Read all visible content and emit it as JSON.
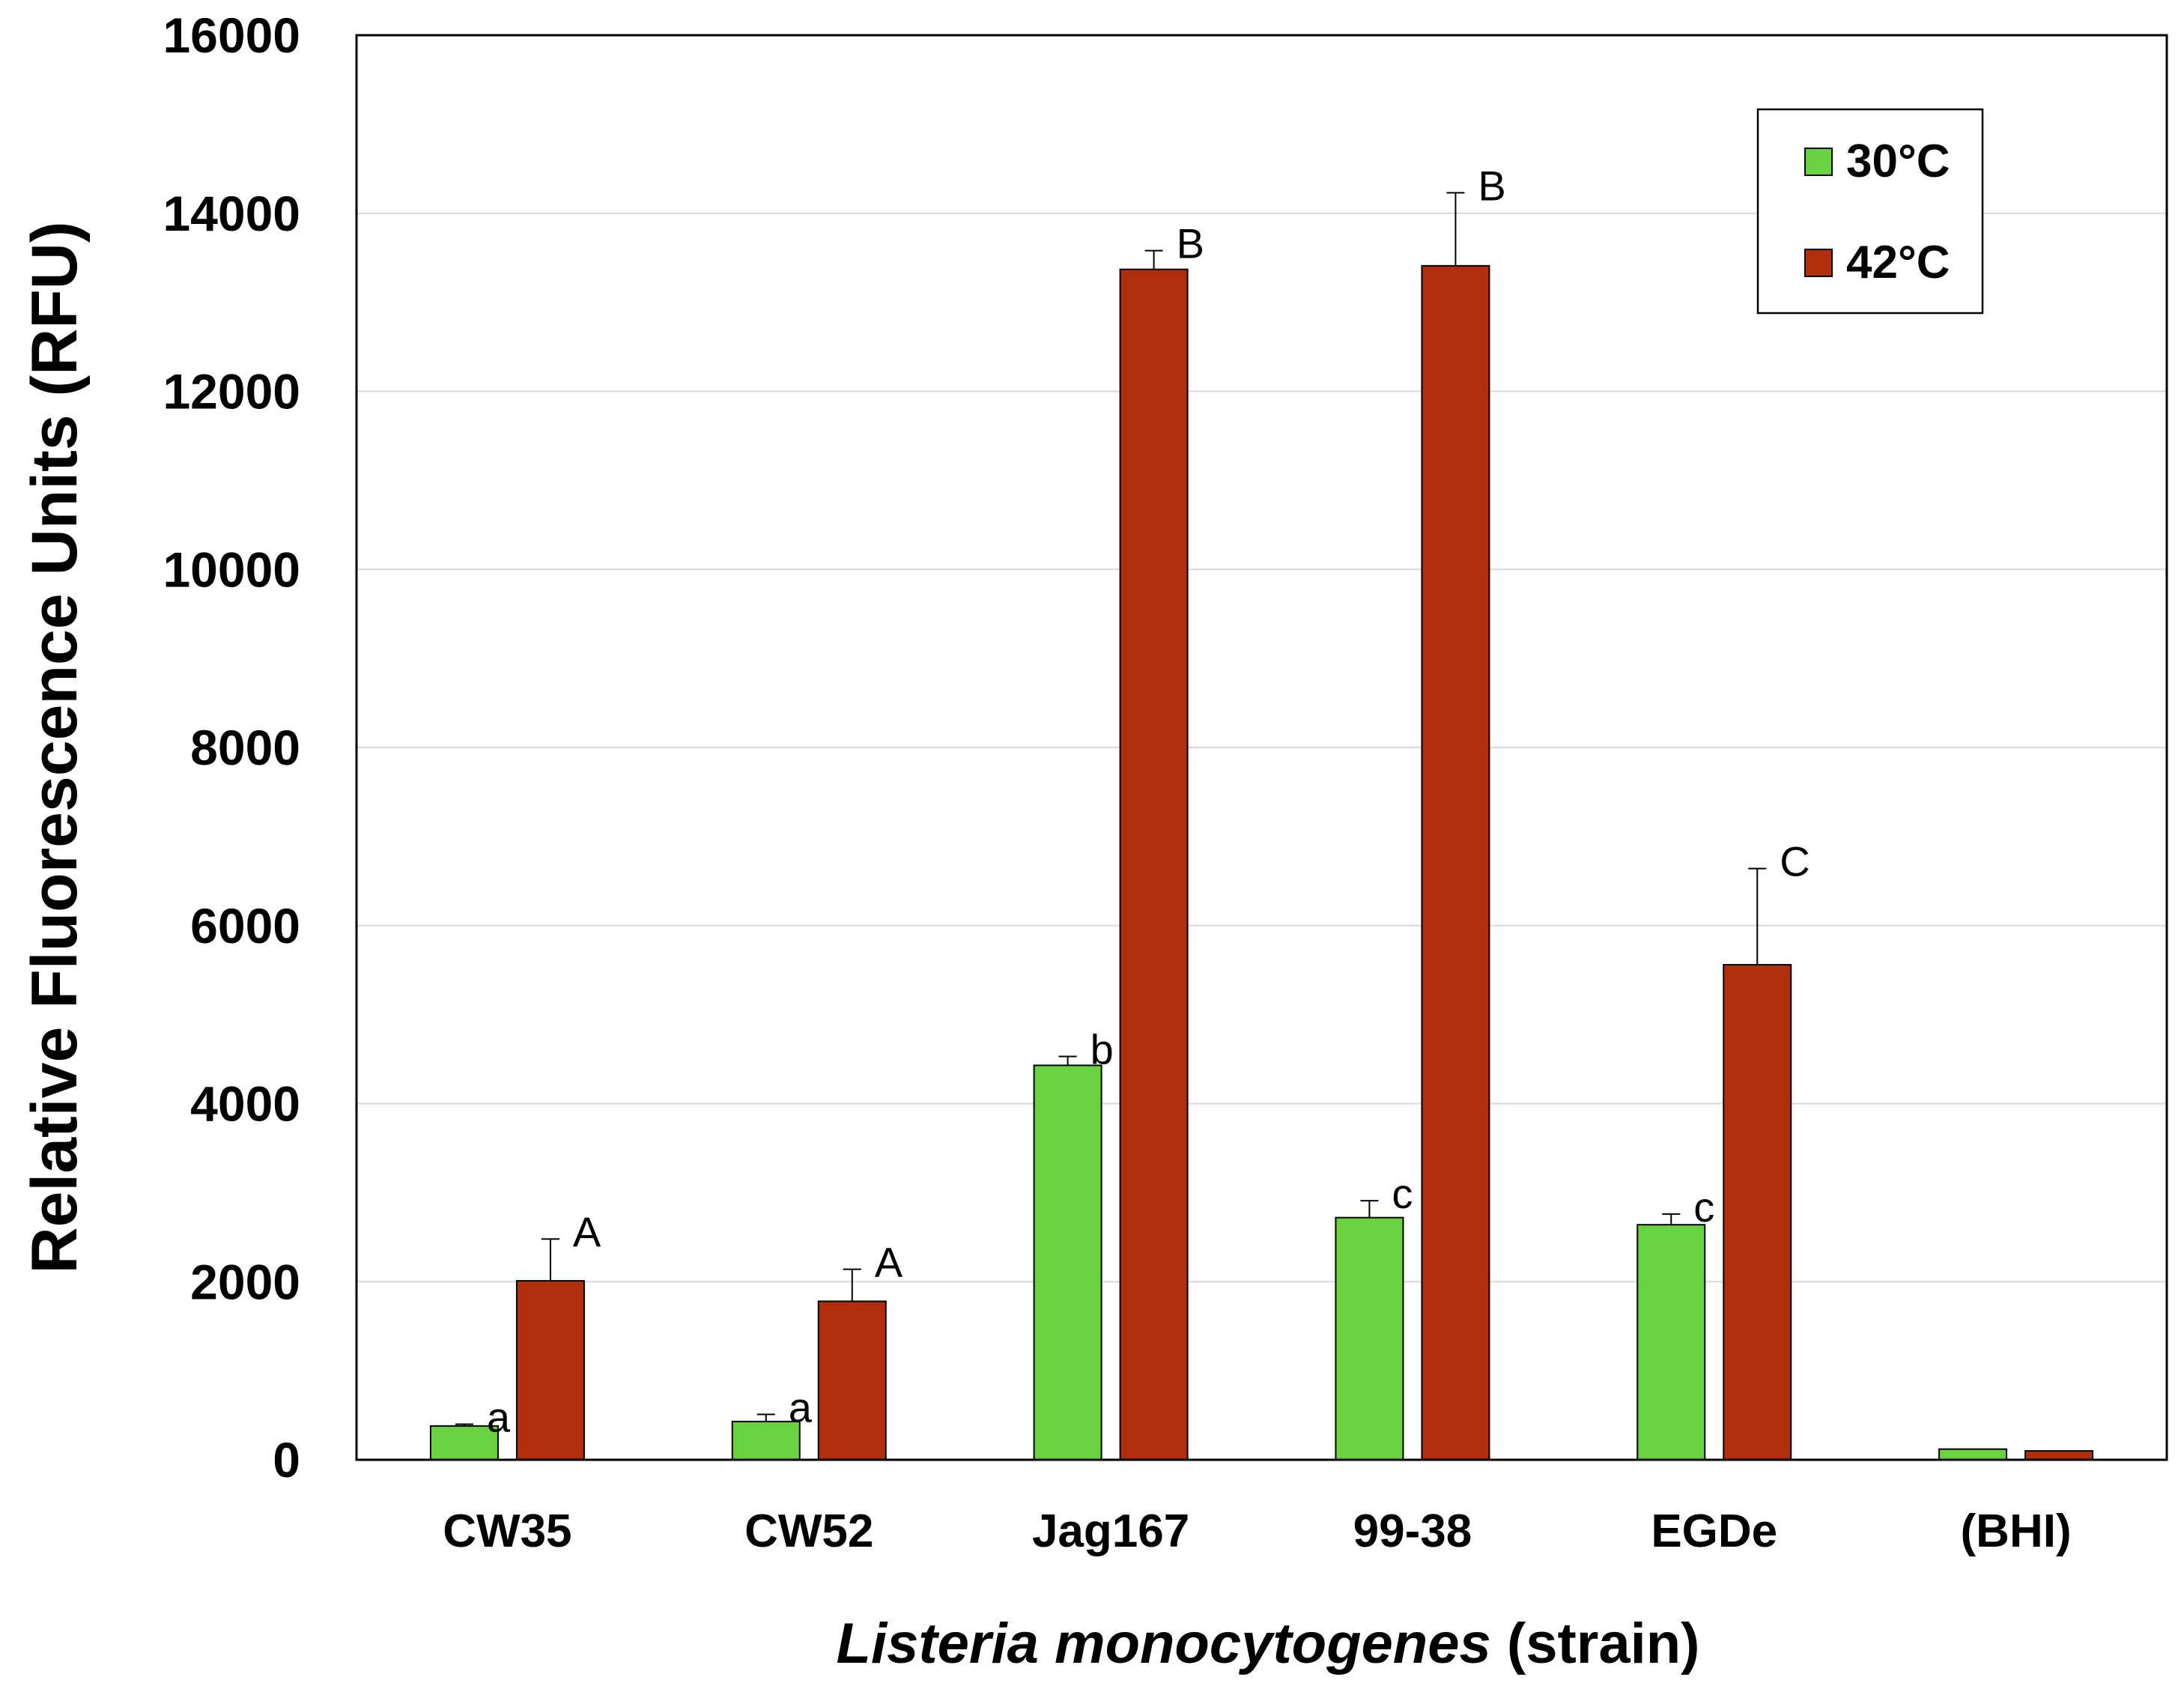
{
  "chart_data": {
    "type": "bar",
    "title": "",
    "ylabel": "Relative Fluorescence Units (RFU)",
    "xlabel_italic": "Listeria monocytogenes",
    "xlabel_rest": " (strain)",
    "ylim": [
      0,
      16000
    ],
    "yticks": [
      0,
      2000,
      4000,
      6000,
      8000,
      10000,
      12000,
      14000,
      16000
    ],
    "grid": true,
    "legend_position": "top-right",
    "categories": [
      "CW35",
      "CW52",
      "Jag167",
      "99-38",
      "EGDe",
      "(BHI)"
    ],
    "series": [
      {
        "name": "30°C",
        "color": "#6ad13f",
        "values": [
          380,
          430,
          4430,
          2720,
          2640,
          120
        ],
        "errors": [
          20,
          80,
          100,
          190,
          120,
          0
        ],
        "labels": [
          "a",
          "a",
          "b",
          "c",
          "c",
          ""
        ]
      },
      {
        "name": "42°C",
        "color": "#b02e0c",
        "values": [
          2010,
          1780,
          13370,
          13410,
          5560,
          100
        ],
        "errors": [
          470,
          360,
          210,
          820,
          1080,
          0
        ],
        "labels": [
          "A",
          "A",
          "B",
          "B",
          "C",
          ""
        ]
      }
    ]
  }
}
